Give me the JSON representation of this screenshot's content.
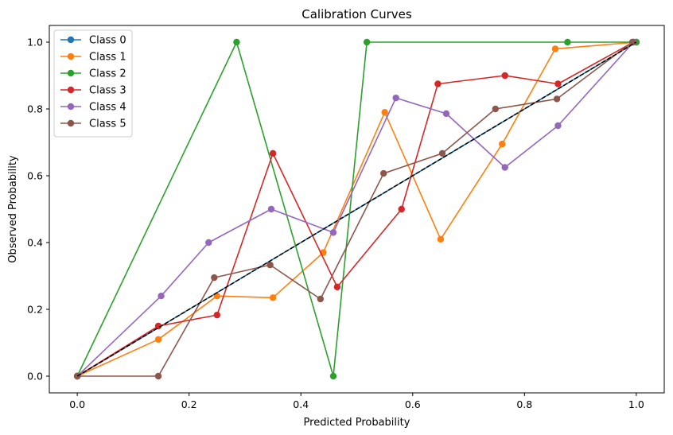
{
  "chart_data": {
    "type": "line",
    "title": "Calibration Curves",
    "xlabel": "Predicted Probability",
    "ylabel": "Observed Probability",
    "xlim": [
      -0.05,
      1.05
    ],
    "ylim": [
      -0.05,
      1.05
    ],
    "xticks": [
      "0.0",
      "0.2",
      "0.4",
      "0.6",
      "0.8",
      "1.0"
    ],
    "yticks": [
      "0.0",
      "0.2",
      "0.4",
      "0.6",
      "0.8",
      "1.0"
    ],
    "grid": false,
    "legend_position": "top-left",
    "reference_line": {
      "x": [
        0,
        1
      ],
      "y": [
        0,
        1
      ],
      "style": "dashed",
      "color": "#000000"
    },
    "series": [
      {
        "name": "Class 0",
        "color": "#1f77b4",
        "x": [
          0.0,
          1.0
        ],
        "y": [
          0.0,
          1.0
        ]
      },
      {
        "name": "Class 1",
        "color": "#ff7f0e",
        "x": [
          0.0,
          0.145,
          0.25,
          0.35,
          0.44,
          0.55,
          0.65,
          0.76,
          0.855,
          1.0
        ],
        "y": [
          0.0,
          0.11,
          0.24,
          0.235,
          0.37,
          0.79,
          0.41,
          0.695,
          0.98,
          1.0
        ]
      },
      {
        "name": "Class 2",
        "color": "#2ca02c",
        "x": [
          0.0,
          0.285,
          0.458,
          0.518,
          0.877,
          1.0
        ],
        "y": [
          0.0,
          1.0,
          0.0,
          1.0,
          1.0,
          1.0
        ]
      },
      {
        "name": "Class 3",
        "color": "#d62728",
        "x": [
          0.0,
          0.145,
          0.25,
          0.35,
          0.465,
          0.58,
          0.645,
          0.765,
          0.86,
          0.995
        ],
        "y": [
          0.0,
          0.15,
          0.183,
          0.667,
          0.267,
          0.5,
          0.875,
          0.9,
          0.875,
          1.0
        ]
      },
      {
        "name": "Class 4",
        "color": "#9467bd",
        "x": [
          0.0,
          0.15,
          0.235,
          0.347,
          0.458,
          0.57,
          0.66,
          0.765,
          0.86,
          0.995
        ],
        "y": [
          0.0,
          0.24,
          0.4,
          0.5,
          0.43,
          0.833,
          0.786,
          0.625,
          0.75,
          1.0
        ]
      },
      {
        "name": "Class 5",
        "color": "#8c564b",
        "x": [
          0.0,
          0.145,
          0.245,
          0.345,
          0.435,
          0.548,
          0.653,
          0.748,
          0.858,
          0.993
        ],
        "y": [
          0.0,
          0.0,
          0.295,
          0.333,
          0.231,
          0.607,
          0.667,
          0.8,
          0.83,
          1.0
        ]
      }
    ]
  }
}
